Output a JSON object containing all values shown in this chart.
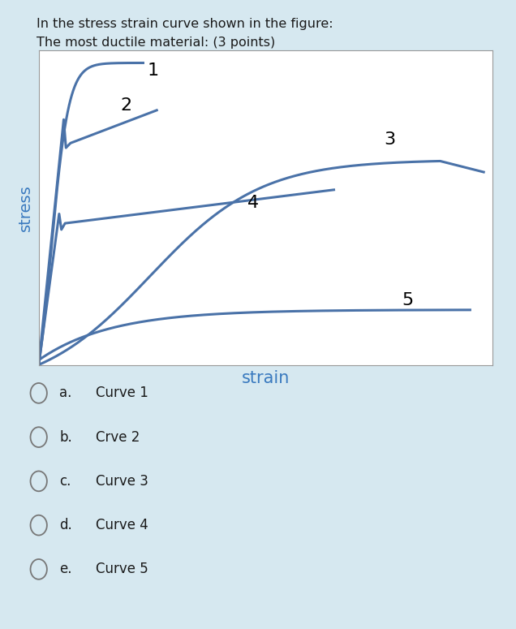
{
  "title_line1": "In the stress strain curve shown in the figure:",
  "title_line2": "The most ductile material: (3 points)",
  "xlabel": "strain",
  "ylabel": "stress",
  "page_bg": "#d6e8f0",
  "plot_bg": "#ffffff",
  "curve_color": "#4a72a8",
  "curve_lw": 2.2,
  "label_fontsize": 16,
  "label_color": "#000000",
  "axis_label_color": "#3a7abf",
  "option_color": "#2c5f8a",
  "options": [
    {
      "letter": "a.",
      "text": "Curve 1"
    },
    {
      "letter": "b.",
      "text": "Crve 2"
    },
    {
      "letter": "c.",
      "text": "Curve 3"
    },
    {
      "letter": "d.",
      "text": "Curve 4"
    },
    {
      "letter": "e.",
      "text": "Curve 5"
    }
  ]
}
